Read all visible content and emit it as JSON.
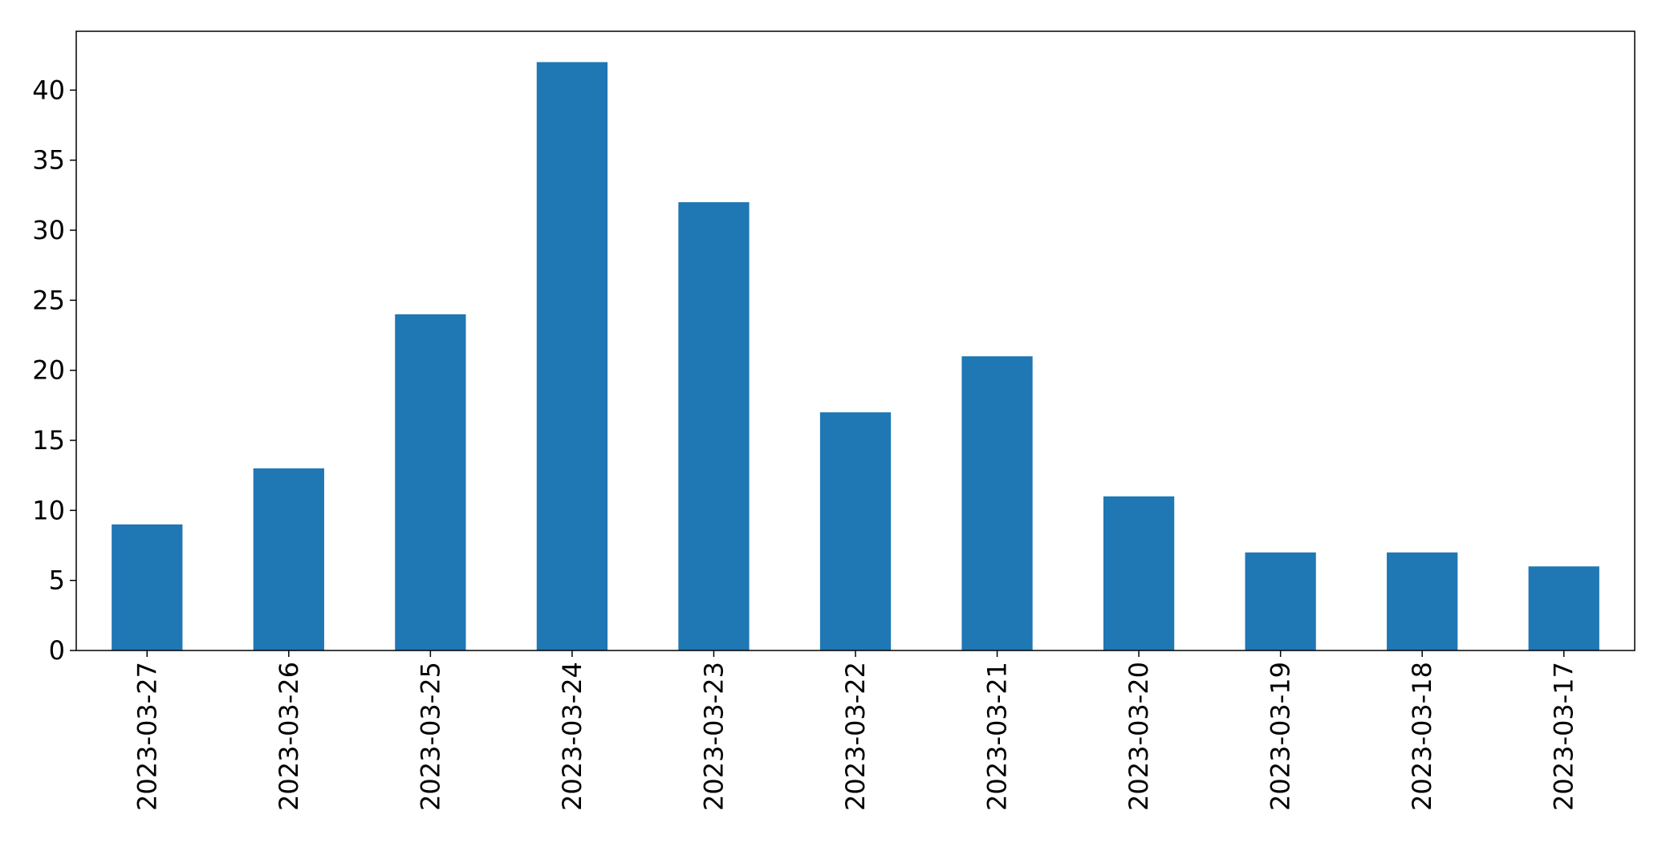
{
  "chart_data": {
    "type": "bar",
    "categories": [
      "2023-03-27",
      "2023-03-26",
      "2023-03-25",
      "2023-03-24",
      "2023-03-23",
      "2023-03-22",
      "2023-03-21",
      "2023-03-20",
      "2023-03-19",
      "2023-03-18",
      "2023-03-17"
    ],
    "values": [
      9,
      13,
      24,
      42,
      32,
      17,
      21,
      11,
      7,
      7,
      6
    ],
    "title": "",
    "xlabel": "",
    "ylabel": "",
    "ylim": [
      0,
      44.2
    ],
    "yticks": [
      0,
      5,
      10,
      15,
      20,
      25,
      30,
      35,
      40
    ],
    "grid": false,
    "bar_color": "#1f77b4"
  }
}
